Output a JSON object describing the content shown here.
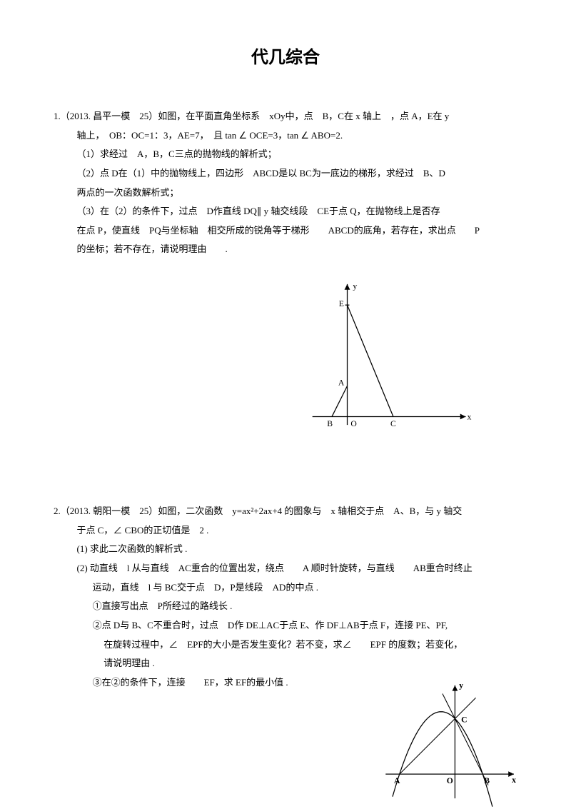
{
  "title": "代几综合",
  "problem1": {
    "line1": "1.（2013. 昌平一模　25）如图，在平面直角坐标系　xOy中，点　B，C在 x 轴上　，点 A，E在 y",
    "line2": "轴上，　OB：OC=1：3，AE=7，　且 tan ∠ OCE=3，tan ∠ ABO=2.",
    "line3": "（1）求经过　A，B，C三点的抛物线的解析式；",
    "line4": "（2）点 D在（1）中的抛物线上，四边形　ABCD是以 BC为一底边的梯形，求经过　B、D",
    "line5": "两点的一次函数解析式；",
    "line6": "（3）在（2）的条件下，过点　D作直线 DQ∥ y 轴交线段　CE于点 Q，在抛物线上是否存",
    "line7": "在点 P，使直线　PQ与坐标轴　相交所成的锐角等于梯形　　ABCD的底角，若存在，求出点　　P",
    "line8": "的坐标；若不存在，请说明理由　　."
  },
  "figure1": {
    "background": "#ffffff",
    "stroke": "#000000",
    "stroke_width": 1.3,
    "font_size": 12,
    "axes": {
      "x_range": [
        -50,
        180
      ],
      "y_range": [
        -15,
        195
      ]
    },
    "points": {
      "O": [
        0,
        0
      ],
      "B": [
        -22,
        0
      ],
      "C": [
        66,
        0
      ],
      "A": [
        0,
        44
      ],
      "E": [
        0,
        198
      ]
    },
    "labels": {
      "y": "y",
      "x": "x",
      "E": "E",
      "A": "A",
      "B": "B",
      "O": "O",
      "C": "C"
    }
  },
  "problem2": {
    "line1": "2.（2013. 朝阳一模　25）如图，二次函数　y=ax²+2ax+4 的图象与　x 轴相交于点　A、B，与 y 轴交",
    "line2": "于点 C，∠ CBO的正切值是　2 .",
    "line3a": "(",
    "line3b": "1",
    "line3c": ") 求此二次函数的解析式 .",
    "line4": "(2) 动直线　l 从与直线　AC重合的位置出发，绕点　　A 顺时针旋转，与直线　　AB重合时终止",
    "line5": "运动，直线　l 与 BC交于点　D，P是线段　AD的中点 .",
    "line6": "①直接写出点　P所经过的路线长 .",
    "line7": "②点 D与 B、C不重合时，过点　D作 DE⊥AC于点 E、作 DF⊥AB于点 F，连接 PE、PF,",
    "line8": "在旋转过程中，∠　EPF的大小是否发生变化？若不变，求∠　　EPF 的度数；若变化，",
    "line9": "请说明理由 .",
    "line10": "③在②的条件下，连接　　EF，求 EF的最小值 ."
  },
  "figure2": {
    "background": "#ffffff",
    "stroke": "#000000",
    "stroke_width": 1.3,
    "font_size": 12,
    "axes": {
      "x_range": [
        -95,
        85
      ],
      "y_range": [
        -35,
        135
      ]
    },
    "points": {
      "A": [
        -80,
        0
      ],
      "B": [
        40,
        0
      ],
      "O": [
        0,
        0
      ],
      "C": [
        0,
        80
      ]
    },
    "parabola": {
      "a": -0.025,
      "h": -20,
      "k": 90,
      "x_from": -90,
      "x_to": 55
    },
    "line_AC_ext": {
      "from": [
        -80,
        0
      ],
      "to": [
        30,
        110
      ]
    },
    "line_BC_ext": {
      "from": [
        48,
        -16
      ],
      "to": [
        -18,
        116
      ]
    },
    "labels": {
      "y": "y",
      "x": "x",
      "A": "A",
      "B": "B",
      "O": "O",
      "C": "C"
    }
  }
}
